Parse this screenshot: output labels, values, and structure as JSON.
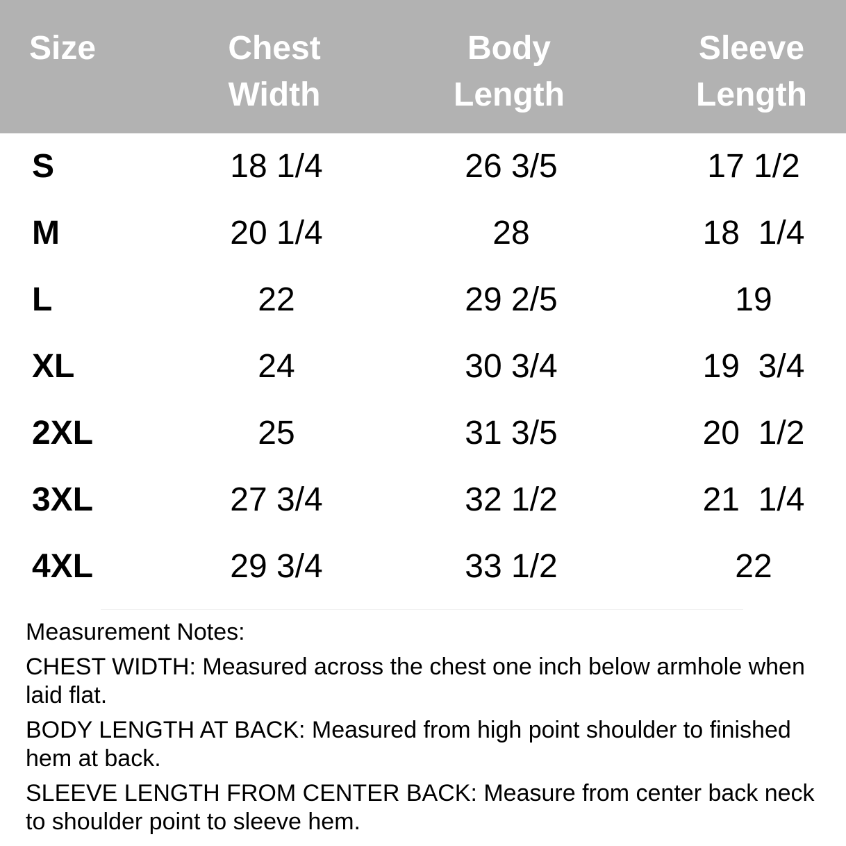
{
  "table": {
    "headers": [
      "Size",
      "Chest\nWidth",
      "Body\nLength",
      "Sleeve\nLength"
    ],
    "rows": [
      [
        "S",
        "18 1/4",
        "26 3/5",
        "17 1/2"
      ],
      [
        "M",
        "20 1/4",
        "28",
        "18  1/4"
      ],
      [
        "L",
        "22",
        "29 2/5",
        "19"
      ],
      [
        "XL",
        "24",
        "30 3/4",
        "19  3/4"
      ],
      [
        "2XL",
        "25",
        "31 3/5",
        "20  1/2"
      ],
      [
        "3XL",
        "27 3/4",
        "32 1/2",
        "21  1/4"
      ],
      [
        "4XL",
        "29 3/4",
        "33 1/2",
        "22"
      ]
    ]
  },
  "notes": {
    "title": "Measurement Notes:",
    "items": [
      {
        "label": "CHEST WIDTH:",
        "text": " Measured across the chest one inch below armhole when laid flat."
      },
      {
        "label": "BODY LENGTH AT BACK:",
        "text": " Measured from high point shoulder to finished hem at back."
      },
      {
        "label": "SLEEVE LENGTH FROM CENTER BACK:",
        "text": " Measure from center back neck to shoulder point to sleeve hem."
      }
    ]
  },
  "colors": {
    "header_bg": "#b2b2b2",
    "header_text": "#ffffff"
  }
}
